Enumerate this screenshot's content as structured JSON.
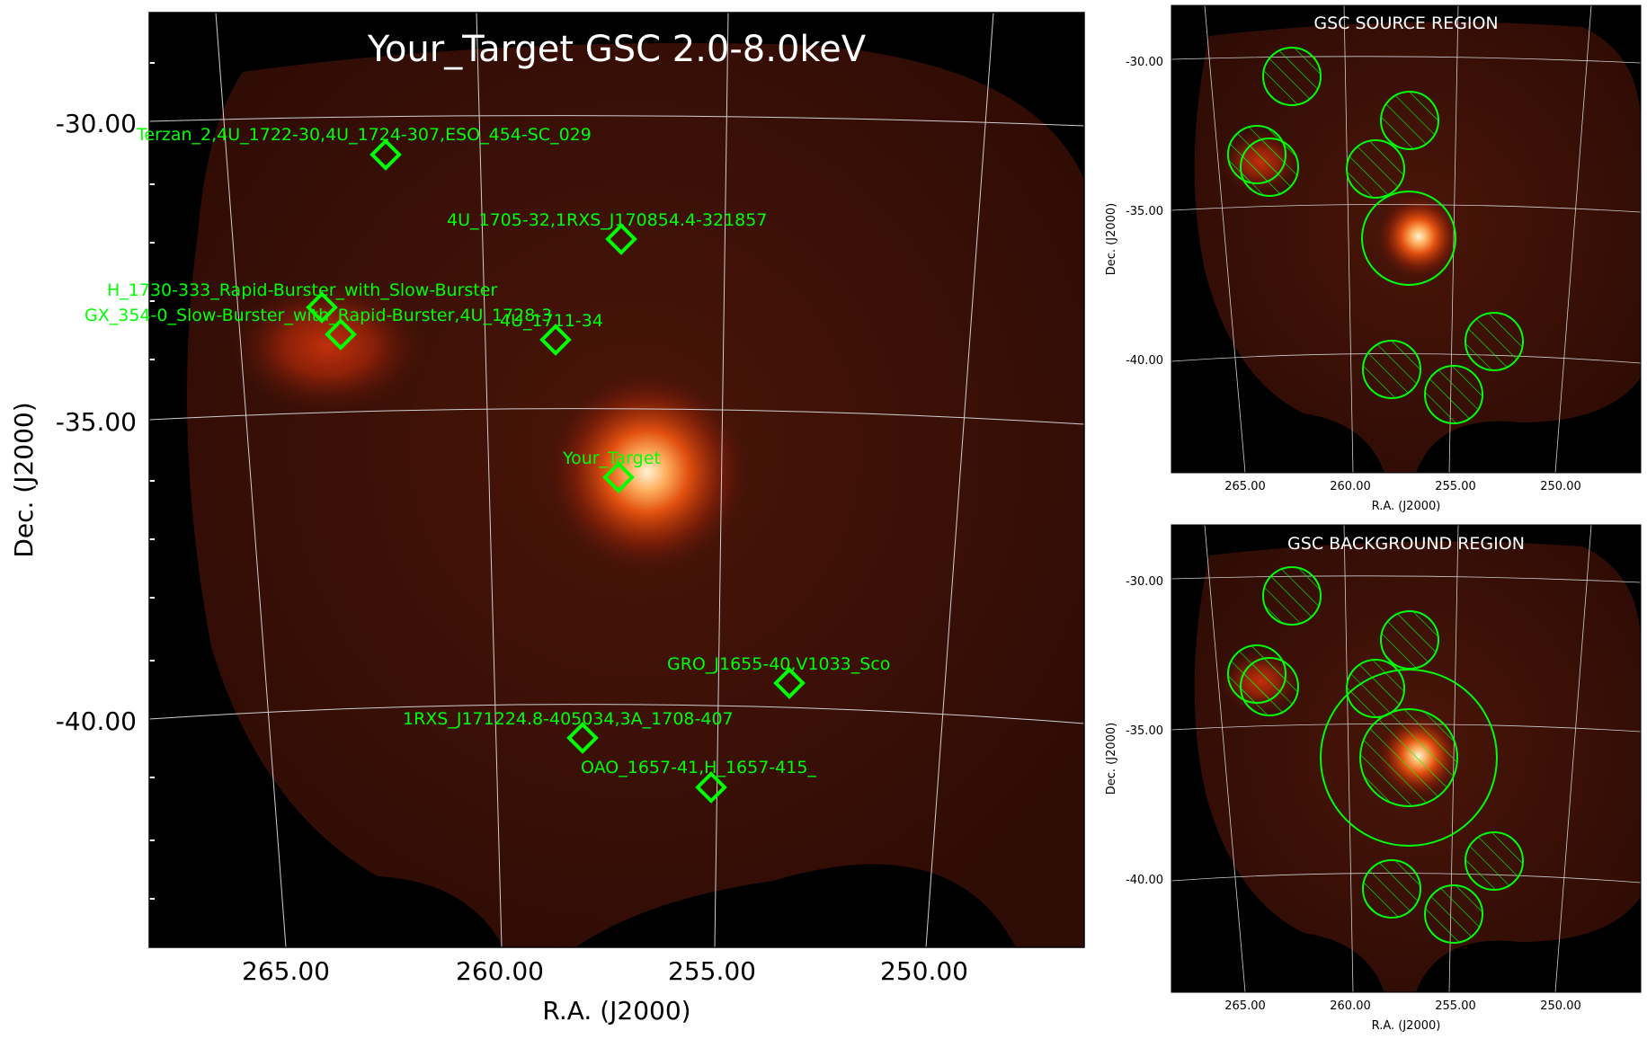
{
  "colors": {
    "background": "#000000",
    "map_dark": "#3a0d06",
    "map_mid": "#5a1a0c",
    "source_core": "#fff0d0",
    "source_glow": "#e85a10",
    "marker": "#00ff00",
    "grid": "#cfcfcf"
  },
  "main_panel": {
    "title": "Your_Target GSC 2.0-8.0keV",
    "xlabel": "R.A. (J2000)",
    "ylabel": "Dec. (J2000)",
    "ra_ticks": [
      "265.00",
      "260.00",
      "255.00",
      "250.00"
    ],
    "dec_ticks": [
      "-30.00",
      "-35.00",
      "-40.00"
    ],
    "sources": [
      {
        "label": "Terzan_2,4U_1722-30,4U_1724-307,ESO_454-SC_029",
        "marker": "diamond"
      },
      {
        "label": "4U_1705-32,1RXS_J170854.4-321857",
        "marker": "diamond"
      },
      {
        "label": "H_1730-333_Rapid-Burster_with_Slow-Burster",
        "marker": "diamond"
      },
      {
        "label": "GX_354-0_Slow-Burster_with_Rapid-Burster,4U_1728-3",
        "marker": "diamond"
      },
      {
        "label": "4U_1711-34",
        "marker": "diamond"
      },
      {
        "label": "Your_Target",
        "marker": "diamond"
      },
      {
        "label": "GRO_J1655-40,V1033_Sco",
        "marker": "diamond"
      },
      {
        "label": "1RXS_J171224.8-405034,3A_1708-407",
        "marker": "diamond"
      },
      {
        "label": "OAO_1657-41,H_1657-415_",
        "marker": "diamond"
      }
    ]
  },
  "source_panel": {
    "title": "GSC SOURCE REGION",
    "xlabel": "R.A. (J2000)",
    "ylabel": "Dec. (J2000)",
    "ra_ticks": [
      "265.00",
      "260.00",
      "255.00",
      "250.00"
    ],
    "dec_ticks": [
      "-30.00",
      "-35.00",
      "-40.00"
    ]
  },
  "background_panel": {
    "title": "GSC BACKGROUND REGION",
    "xlabel": "R.A. (J2000)",
    "ylabel": "Dec. (J2000)",
    "ra_ticks": [
      "265.00",
      "260.00",
      "255.00",
      "250.00"
    ],
    "dec_ticks": [
      "-30.00",
      "-35.00",
      "-40.00"
    ]
  }
}
